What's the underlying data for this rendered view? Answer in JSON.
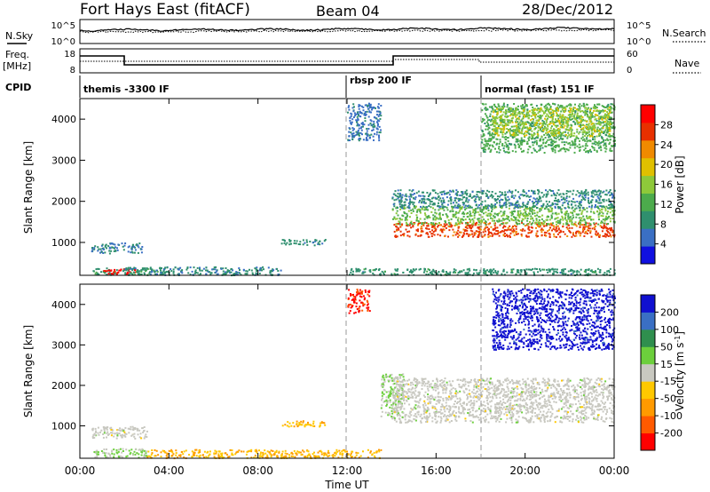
{
  "header": {
    "title": "Fort Hays East (fitACF)",
    "beam": "Beam 04",
    "date": "28/Dec/2012"
  },
  "noise_panel": {
    "left_label": "N.Sky",
    "right_label": "N.Search",
    "left_ticks": [
      "10^5",
      "10^0"
    ],
    "right_ticks": [
      "10^5",
      "10^0"
    ]
  },
  "freq_panel": {
    "left_label_1": "Freq.",
    "left_label_2": "[MHz]",
    "right_label": "Nave",
    "left_ticks": [
      "18",
      "8"
    ],
    "right_ticks": [
      "60",
      "0"
    ]
  },
  "cpid_panel": {
    "label": "CPID",
    "segments": [
      "themis -3300 IF",
      "rbsp 200 IF",
      "normal (fast) 151 IF"
    ]
  },
  "x_axis": {
    "label": "Time UT",
    "ticks": [
      "00:00",
      "04:00",
      "08:00",
      "12:00",
      "16:00",
      "20:00",
      "00:00"
    ]
  },
  "chart_data": [
    {
      "type": "heatmap",
      "quantity": "Power",
      "xlabel": "Time UT",
      "ylabel": "Slant Range [km]",
      "xlim": [
        0,
        24
      ],
      "ylim": [
        200,
        4500
      ],
      "yticks": [
        "1000",
        "2000",
        "3000",
        "4000"
      ],
      "colorbar": {
        "label": "Power [dB]",
        "range": [
          0,
          32
        ],
        "ticks": [
          "4",
          "8",
          "12",
          "16",
          "20",
          "24",
          "28"
        ],
        "colors": [
          "#1010e0",
          "#3a6fc4",
          "#2f8f6e",
          "#4cab4c",
          "#8ec93a",
          "#e0c000",
          "#f08a00",
          "#e83000",
          "#ff0000"
        ]
      },
      "regions": [
        {
          "x": [
            0.5,
            3.8
          ],
          "y": [
            220,
            400
          ],
          "value": 10
        },
        {
          "x": [
            1.0,
            2.5
          ],
          "y": [
            250,
            380
          ],
          "value": 30
        },
        {
          "x": [
            0.5,
            2.8
          ],
          "y": [
            750,
            1000
          ],
          "value": 7
        },
        {
          "x": [
            2.0,
            9.0
          ],
          "y": [
            220,
            420
          ],
          "value": 8
        },
        {
          "x": [
            9.0,
            11.0
          ],
          "y": [
            950,
            1100
          ],
          "value": 8
        },
        {
          "x": [
            12.0,
            13.5
          ],
          "y": [
            3500,
            4400
          ],
          "value": 6
        },
        {
          "x": [
            12.0,
            24.0
          ],
          "y": [
            220,
            380
          ],
          "value": 9
        },
        {
          "x": [
            14.0,
            24.0
          ],
          "y": [
            1150,
            1500
          ],
          "value": 26
        },
        {
          "x": [
            14.0,
            24.0
          ],
          "y": [
            1450,
            1900
          ],
          "value": 14
        },
        {
          "x": [
            14.0,
            24.0
          ],
          "y": [
            1850,
            2300
          ],
          "value": 8
        },
        {
          "x": [
            18.0,
            24.0
          ],
          "y": [
            3200,
            4400
          ],
          "value": 12
        },
        {
          "x": [
            18.5,
            23.8
          ],
          "y": [
            3600,
            4300
          ],
          "value": 17
        }
      ]
    },
    {
      "type": "heatmap",
      "quantity": "Velocity",
      "xlabel": "Time UT",
      "ylabel": "Slant Range [km]",
      "xlim": [
        0,
        24
      ],
      "ylim": [
        200,
        4500
      ],
      "yticks": [
        "1000",
        "2000",
        "3000",
        "4000"
      ],
      "colorbar": {
        "label": "Velocity [m s^-1]",
        "range": [
          -250,
          250
        ],
        "ticks": [
          "200",
          "100",
          "50",
          "15",
          "-15",
          "-50",
          "-100",
          "-200"
        ],
        "colors": [
          "#ff0000",
          "#ff5a00",
          "#ff9a00",
          "#ffc800",
          "#c8c8c0",
          "#6ccf3c",
          "#2f8f4e",
          "#3a6fc4",
          "#1010d0"
        ]
      },
      "regions": [
        {
          "x": [
            0.5,
            3.0
          ],
          "y": [
            230,
            450
          ],
          "value": 30
        },
        {
          "x": [
            0.5,
            3.0
          ],
          "y": [
            700,
            1000
          ],
          "value": 0
        },
        {
          "x": [
            3.0,
            13.5
          ],
          "y": [
            220,
            430
          ],
          "value": -80
        },
        {
          "x": [
            9.0,
            11.0
          ],
          "y": [
            1000,
            1150
          ],
          "value": -80
        },
        {
          "x": [
            12.0,
            13.0
          ],
          "y": [
            3800,
            4400
          ],
          "value": -200
        },
        {
          "x": [
            13.5,
            14.5
          ],
          "y": [
            1200,
            2300
          ],
          "value": 30
        },
        {
          "x": [
            14.0,
            24.0
          ],
          "y": [
            1100,
            2200
          ],
          "value": 0
        },
        {
          "x": [
            18.5,
            24.0
          ],
          "y": [
            2900,
            4400
          ],
          "value": 220
        }
      ]
    }
  ]
}
